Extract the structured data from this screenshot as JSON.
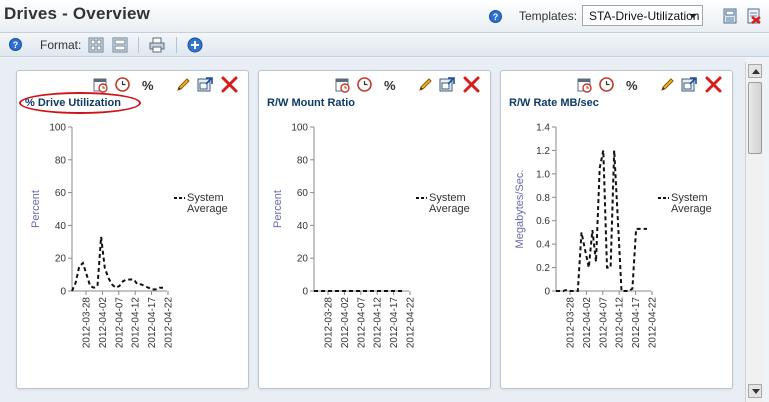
{
  "header": {
    "title": "Drives - Overview",
    "help_icon": "help-icon",
    "templates_label": "Templates:",
    "template_selected": "STA-Drive-Utilization",
    "icons": [
      "save-template-icon",
      "delete-template-icon"
    ]
  },
  "toolbar": {
    "help_icon": "help-icon",
    "format_label": "Format:",
    "icons": [
      "layout-grid-icon",
      "layout-rows-icon",
      "print-icon",
      "add-icon"
    ]
  },
  "panel_tools": [
    "calendar-icon",
    "clock-icon",
    "percent-icon",
    "edit-icon",
    "maximize-icon",
    "close-icon"
  ],
  "colors": {
    "title": "#0d3b66",
    "axis": "#6a6aa8",
    "series": "#111111",
    "highlight": "#d0121b"
  },
  "panels": [
    {
      "title": "% Drive Utilization",
      "highlighted": true,
      "chart_data": {
        "type": "line",
        "ylabel": "Percent",
        "ylim": [
          0,
          100
        ],
        "yticks": [
          "0",
          "20",
          "40",
          "60",
          "80",
          "100"
        ],
        "xticks": [
          "2012-03-28",
          "2012-04-02",
          "2012-04-07",
          "2012-04-12",
          "2012-04-17",
          "2012-04-22"
        ],
        "legend": "System Average",
        "series": [
          {
            "name": "System Average",
            "style": "dashed",
            "values": [
              0,
              5,
              15,
              17,
              10,
              3,
              2,
              3,
              33,
              14,
              8,
              4,
              2,
              3,
              6,
              7,
              7,
              7,
              4,
              4,
              3,
              2,
              1,
              1,
              2,
              2
            ]
          }
        ]
      }
    },
    {
      "title": "R/W Mount Ratio",
      "highlighted": false,
      "chart_data": {
        "type": "line",
        "ylabel": "Percent",
        "ylim": [
          0,
          100
        ],
        "yticks": [
          "0",
          "20",
          "40",
          "60",
          "80",
          "100"
        ],
        "xticks": [
          "2012-03-28",
          "2012-04-02",
          "2012-04-07",
          "2012-04-12",
          "2012-04-17",
          "2012-04-22"
        ],
        "legend": "System Average",
        "series": [
          {
            "name": "System Average",
            "style": "dashed",
            "values": [
              0,
              0,
              0,
              0,
              0,
              0,
              0,
              0,
              0,
              0,
              0,
              0,
              0,
              0,
              0,
              0,
              0,
              0,
              0,
              0,
              0,
              0,
              0,
              0,
              0,
              0
            ]
          }
        ]
      }
    },
    {
      "title": "R/W Rate MB/sec",
      "highlighted": false,
      "chart_data": {
        "type": "line",
        "ylabel": "Megabytes/Sec.",
        "ylim": [
          0,
          1.4
        ],
        "yticks": [
          "0",
          "0.2",
          "0.4",
          "0.6",
          "0.8",
          "1.0",
          "1.2",
          "1.4"
        ],
        "xticks": [
          "2012-03-28",
          "2012-04-02",
          "2012-04-07",
          "2012-04-12",
          "2012-04-17",
          "2012-04-22"
        ],
        "legend": "System Average",
        "series": [
          {
            "name": "System Average",
            "style": "dashed",
            "values": [
              0,
              0,
              0,
              0.01,
              0,
              0,
              0,
              0.5,
              0.35,
              0.2,
              0.52,
              0.25,
              1.05,
              1.2,
              0.2,
              0.2,
              1.2,
              0.6,
              0,
              0,
              0,
              0.02,
              0.53,
              0.53,
              0.53,
              0.53
            ]
          }
        ]
      }
    }
  ]
}
